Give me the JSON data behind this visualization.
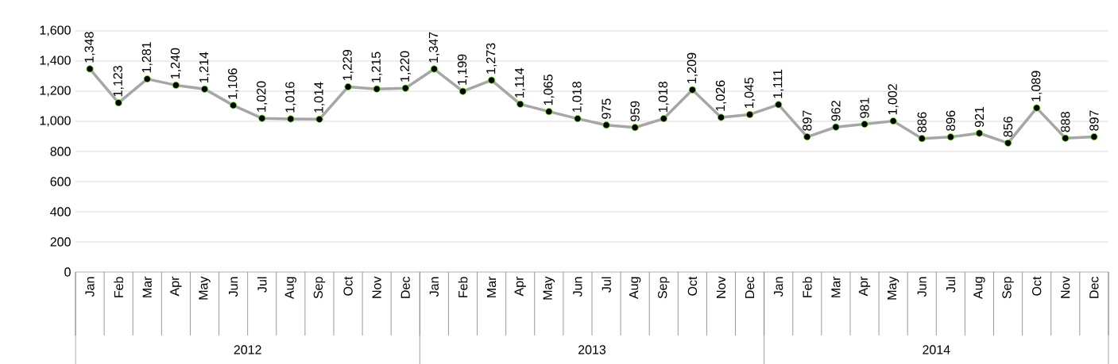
{
  "chart_data": {
    "type": "line",
    "categories": [
      "Jan",
      "Feb",
      "Mar",
      "Apr",
      "May",
      "Jun",
      "Jul",
      "Aug",
      "Sep",
      "Oct",
      "Nov",
      "Dec",
      "Jan",
      "Feb",
      "Mar",
      "Apr",
      "May",
      "Jun",
      "Jul",
      "Aug",
      "Sep",
      "Oct",
      "Nov",
      "Dec",
      "Jan",
      "Feb",
      "Mar",
      "Apr",
      "May",
      "Jun",
      "Jul",
      "Aug",
      "Sep",
      "Oct",
      "Nov",
      "Dec"
    ],
    "series": [
      {
        "color": "#a6a6a6",
        "values": [
          1348,
          1123,
          1281,
          1240,
          1214,
          1106,
          1020,
          1016,
          1014,
          1229,
          1215,
          1220,
          1347,
          1199,
          1273,
          1114,
          1065,
          1018,
          975,
          959,
          1018,
          1209,
          1026,
          1045,
          1111,
          897,
          962,
          981,
          1002,
          886,
          896,
          921,
          856,
          1089,
          888,
          897
        ],
        "value_labels": [
          "1,348",
          "1,123",
          "1,281",
          "1,240",
          "1,214",
          "1,106",
          "1,020",
          "1,016",
          "1,014",
          "1,229",
          "1,215",
          "1,220",
          "1,347",
          "1,199",
          "1,273",
          "1,114",
          "1,065",
          "1,018",
          "975",
          "959",
          "1,018",
          "1,209",
          "1,026",
          "1,045",
          "1,111",
          "897",
          "962",
          "981",
          "1,002",
          "886",
          "896",
          "921",
          "856",
          "1,089",
          "888",
          "897"
        ]
      }
    ],
    "annotations": [
      "2012",
      "2013",
      "2014"
    ],
    "ylim": [
      0,
      1600
    ],
    "yticks": [
      0,
      {
        "value": 200,
        "label": "200"
      },
      {
        "value": 400,
        "label": "400"
      },
      {
        "value": 600,
        "label": "600"
      },
      {
        "value": 800,
        "label": "800"
      },
      {
        "value": 1000,
        "label": "1,000"
      },
      {
        "value": 1200,
        "label": "1,200"
      },
      {
        "value": 1400,
        "label": "1,400"
      },
      {
        "value": 1600,
        "label": "1,600"
      }
    ],
    "grid": "y",
    "legend": false,
    "marker": "circle",
    "line_style": "solid"
  }
}
